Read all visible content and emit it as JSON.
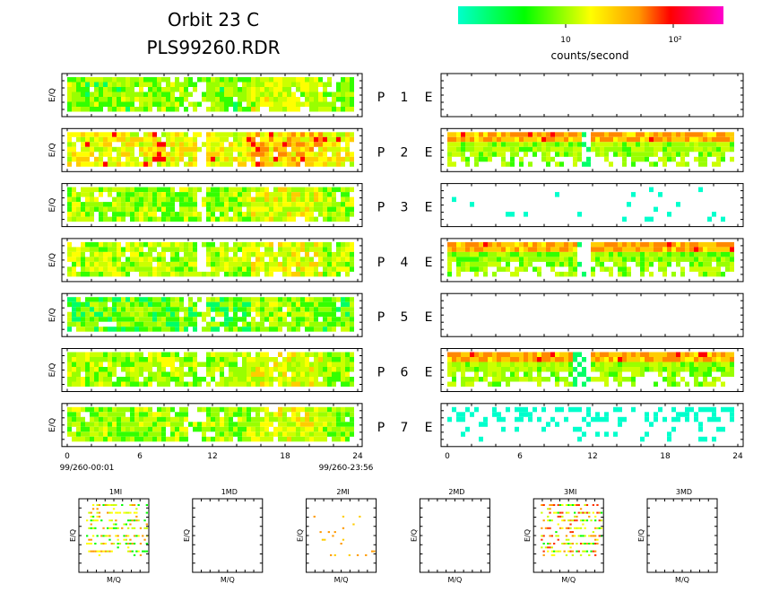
{
  "header": {
    "title": "Orbit 23 C",
    "subtitle": "PLS99260.RDR"
  },
  "colorbar": {
    "tick_labels": [
      "10",
      "10²"
    ],
    "label": "counts/second",
    "scale": "log",
    "colors": [
      "#00ffcc",
      "#00ff00",
      "#ffff00",
      "#ff9900",
      "#ff0000",
      "#ff00cc"
    ]
  },
  "rows": [
    {
      "p": "P",
      "n": "1",
      "e": "E"
    },
    {
      "p": "P",
      "n": "2",
      "e": "E"
    },
    {
      "p": "P",
      "n": "3",
      "e": "E"
    },
    {
      "p": "P",
      "n": "4",
      "e": "E"
    },
    {
      "p": "P",
      "n": "5",
      "e": "E"
    },
    {
      "p": "P",
      "n": "6",
      "e": "E"
    },
    {
      "p": "P",
      "n": "7",
      "e": "E"
    }
  ],
  "left_axis": {
    "ylabel": "E/Q",
    "x_ticks": [
      "0",
      "6",
      "12",
      "18",
      "24"
    ],
    "start_time": "99/260-00:01",
    "end_time": "99/260-23:56"
  },
  "right_axis": {
    "x_ticks": [
      "0",
      "6",
      "12",
      "18",
      "24"
    ]
  },
  "mini_panels": {
    "titles": [
      "1MI",
      "1MD",
      "2MI",
      "2MD",
      "3MI",
      "3MD"
    ],
    "ylabel": "E/Q",
    "xlabel": "M/Q"
  },
  "chart_data": [
    {
      "type": "heatmap",
      "group": "P (left column)",
      "x_range": [
        0,
        24
      ],
      "ylabel": "E/Q",
      "colorbar_label": "counts/second",
      "series": [
        {
          "name": "P 1",
          "level": 1.5,
          "gap": [
            9.9,
            11.3
          ],
          "end": 23.5
        },
        {
          "name": "P 2",
          "level": 2.4,
          "gap": [
            10.5,
            11.3
          ],
          "end": 23.5
        },
        {
          "name": "P 3",
          "level": 1.6,
          "gap": [
            10.5,
            11.3
          ],
          "end": 23.5
        },
        {
          "name": "P 4",
          "level": 1.8,
          "gap": [
            10.5,
            11.3
          ],
          "end": 23.5
        },
        {
          "name": "P 5",
          "level": 1.2,
          "gap": [
            10.5,
            11.3
          ],
          "end": 23.5
        },
        {
          "name": "P 6",
          "level": 1.7,
          "gap": [
            10.5,
            11.3
          ],
          "end": 23.5
        },
        {
          "name": "P 7",
          "level": 1.6,
          "gap": [
            10.0,
            11.0
          ],
          "end": 23.5
        }
      ]
    },
    {
      "type": "heatmap",
      "group": "E (right column)",
      "x_range": [
        0,
        24
      ],
      "series": [
        {
          "name": "E 1",
          "level": 0
        },
        {
          "name": "E 2",
          "level": 2.2,
          "band": "high",
          "gap": [
            10.8,
            11.8
          ]
        },
        {
          "name": "E 3",
          "level": 0.3,
          "sparse": true
        },
        {
          "name": "E 4",
          "level": 2.4,
          "band": "high",
          "gap": [
            10.5,
            11.8
          ]
        },
        {
          "name": "E 5",
          "level": 0
        },
        {
          "name": "E 6",
          "level": 2.3,
          "band": "high",
          "gap": [
            10.3,
            11.5
          ]
        },
        {
          "name": "E 7",
          "level": 0.8,
          "sparse": true
        }
      ]
    },
    {
      "type": "scatter",
      "group": "mass spectra",
      "xlabel": "M/Q",
      "ylabel": "E/Q",
      "panels": [
        {
          "title": "1MI",
          "density": 0.55,
          "colors": [
            "#00ff00",
            "#ccff00",
            "#ffff00",
            "#ff9900"
          ]
        },
        {
          "title": "1MD",
          "density": 0
        },
        {
          "title": "2MI",
          "density": 0.08,
          "colors": [
            "#ff9900",
            "#ffcc00"
          ]
        },
        {
          "title": "2MD",
          "density": 0
        },
        {
          "title": "3MI",
          "density": 0.6,
          "colors": [
            "#00ff00",
            "#ccff00",
            "#ffff00",
            "#ff9900",
            "#ff3300"
          ]
        },
        {
          "title": "3MD",
          "density": 0
        }
      ]
    }
  ]
}
